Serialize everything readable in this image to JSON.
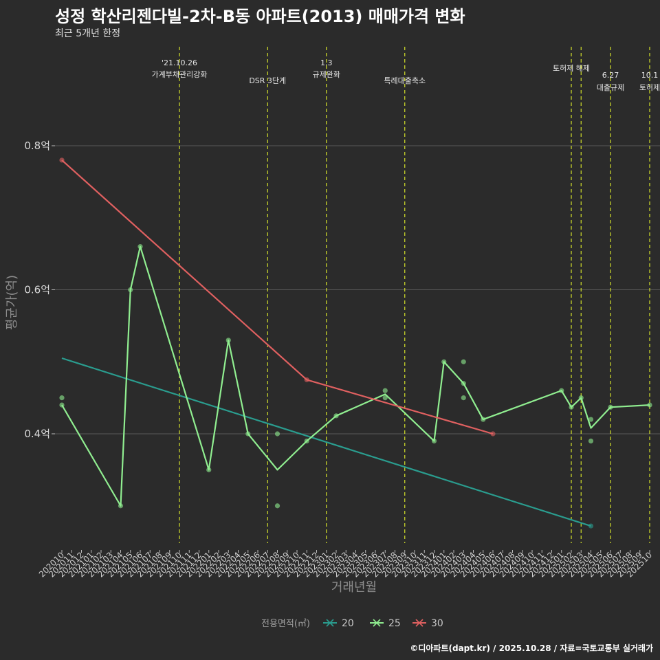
{
  "title": "성정 학산리젠다빌-2차-B동 아파트(2013) 매매가격 변화",
  "subtitle": "최근 5개년 한정",
  "credit": "©디아파트(dapt.kr) / 2025.10.28 / 자료=국토교통부 실거래가",
  "colors": {
    "background": "#2b2b2b",
    "grid": "#5a5a5a",
    "event_line": "#d4e12a",
    "series_20": "#2a9d8f",
    "series_25": "#90ee90",
    "series_30": "#e06060"
  },
  "chart_data": {
    "type": "line",
    "title": "성정 학산리젠다빌-2차-B동 아파트(2013) 매매가격 변화",
    "xlabel": "거래년월",
    "ylabel": "평균가(억)",
    "ylim": [
      0.25,
      0.85
    ],
    "y_ticks": [
      {
        "value": 0.4,
        "label": "0.4억"
      },
      {
        "value": 0.6,
        "label": "0.6억"
      },
      {
        "value": 0.8,
        "label": "0.8억"
      }
    ],
    "categories": [
      "202010",
      "202011",
      "202012",
      "202101",
      "202102",
      "202103",
      "202104",
      "202105",
      "202106",
      "202107",
      "202108",
      "202109",
      "202110",
      "202111",
      "202112",
      "202201",
      "202202",
      "202203",
      "202204",
      "202205",
      "202206",
      "202207",
      "202208",
      "202209",
      "202210",
      "202211",
      "202212",
      "202301",
      "202302",
      "202303",
      "202304",
      "202305",
      "202306",
      "202307",
      "202308",
      "202309",
      "202310",
      "202311",
      "202312",
      "202401",
      "202402",
      "202403",
      "202404",
      "202405",
      "202406",
      "202407",
      "202408",
      "202409",
      "202410",
      "202411",
      "202412",
      "202501",
      "202502",
      "202503",
      "202504",
      "202505",
      "202506",
      "202507",
      "202508",
      "202509",
      "202510"
    ],
    "legend_title": "전용면적(㎡)",
    "legend_position": "bottom",
    "series": [
      {
        "name": "20",
        "color": "#2a9d8f",
        "style": "trend",
        "line": [
          {
            "x": "202010",
            "y": 0.505
          },
          {
            "x": "202504",
            "y": 0.272
          }
        ],
        "points": [
          {
            "x": "202504",
            "y": 0.272
          }
        ]
      },
      {
        "name": "25",
        "color": "#90ee90",
        "style": "line",
        "line": [
          {
            "x": "202010",
            "y": 0.44
          },
          {
            "x": "202104",
            "y": 0.3
          },
          {
            "x": "202105",
            "y": 0.6
          },
          {
            "x": "202106",
            "y": 0.66
          },
          {
            "x": "202201",
            "y": 0.35
          },
          {
            "x": "202203",
            "y": 0.53
          },
          {
            "x": "202205",
            "y": 0.4
          },
          {
            "x": "202208",
            "y": 0.35
          },
          {
            "x": "202211",
            "y": 0.39
          },
          {
            "x": "202302",
            "y": 0.425
          },
          {
            "x": "202307",
            "y": 0.455
          },
          {
            "x": "202312",
            "y": 0.39
          },
          {
            "x": "202401",
            "y": 0.5
          },
          {
            "x": "202403",
            "y": 0.47
          },
          {
            "x": "202405",
            "y": 0.42
          },
          {
            "x": "202501",
            "y": 0.46
          },
          {
            "x": "202502",
            "y": 0.437
          },
          {
            "x": "202503",
            "y": 0.45
          },
          {
            "x": "202504",
            "y": 0.408
          },
          {
            "x": "202506",
            "y": 0.437
          },
          {
            "x": "202510",
            "y": 0.44
          }
        ],
        "points": [
          {
            "x": "202010",
            "y": 0.45
          },
          {
            "x": "202010",
            "y": 0.44
          },
          {
            "x": "202104",
            "y": 0.3
          },
          {
            "x": "202105",
            "y": 0.6
          },
          {
            "x": "202106",
            "y": 0.66
          },
          {
            "x": "202201",
            "y": 0.35
          },
          {
            "x": "202203",
            "y": 0.53
          },
          {
            "x": "202205",
            "y": 0.4
          },
          {
            "x": "202208",
            "y": 0.4
          },
          {
            "x": "202208",
            "y": 0.3
          },
          {
            "x": "202211",
            "y": 0.39
          },
          {
            "x": "202302",
            "y": 0.425
          },
          {
            "x": "202307",
            "y": 0.46
          },
          {
            "x": "202307",
            "y": 0.45
          },
          {
            "x": "202312",
            "y": 0.39
          },
          {
            "x": "202401",
            "y": 0.5
          },
          {
            "x": "202403",
            "y": 0.5
          },
          {
            "x": "202403",
            "y": 0.47
          },
          {
            "x": "202403",
            "y": 0.45
          },
          {
            "x": "202405",
            "y": 0.42
          },
          {
            "x": "202501",
            "y": 0.46
          },
          {
            "x": "202502",
            "y": 0.437
          },
          {
            "x": "202503",
            "y": 0.45
          },
          {
            "x": "202504",
            "y": 0.42
          },
          {
            "x": "202504",
            "y": 0.39
          },
          {
            "x": "202506",
            "y": 0.437
          },
          {
            "x": "202510",
            "y": 0.44
          }
        ]
      },
      {
        "name": "30",
        "color": "#e06060",
        "style": "line",
        "line": [
          {
            "x": "202010",
            "y": 0.78
          },
          {
            "x": "202211",
            "y": 0.475
          },
          {
            "x": "202406",
            "y": 0.4
          }
        ],
        "points": [
          {
            "x": "202010",
            "y": 0.78
          },
          {
            "x": "202211",
            "y": 0.475
          },
          {
            "x": "202406",
            "y": 0.4
          }
        ]
      }
    ],
    "events": [
      {
        "x": "202110",
        "lines": [
          "'21.10.26",
          "가계부채관리강화"
        ],
        "row": 1
      },
      {
        "x": "202207",
        "lines": [
          "DSR 3단계"
        ],
        "row": 2
      },
      {
        "x": "202301",
        "lines": [
          "1.3",
          "규제완화"
        ],
        "row": 1
      },
      {
        "x": "202309",
        "lines": [
          "특례대출축소"
        ],
        "row": 2
      },
      {
        "x": "202502",
        "lines": [
          "토허제 해제"
        ],
        "row": 0
      },
      {
        "x": "202503",
        "lines": [],
        "row": 0
      },
      {
        "x": "202506",
        "lines": [
          "6.27",
          "대출규제"
        ],
        "row": 3
      },
      {
        "x": "202510",
        "lines": [
          "10.1",
          "토허제"
        ],
        "row": 3
      }
    ]
  }
}
